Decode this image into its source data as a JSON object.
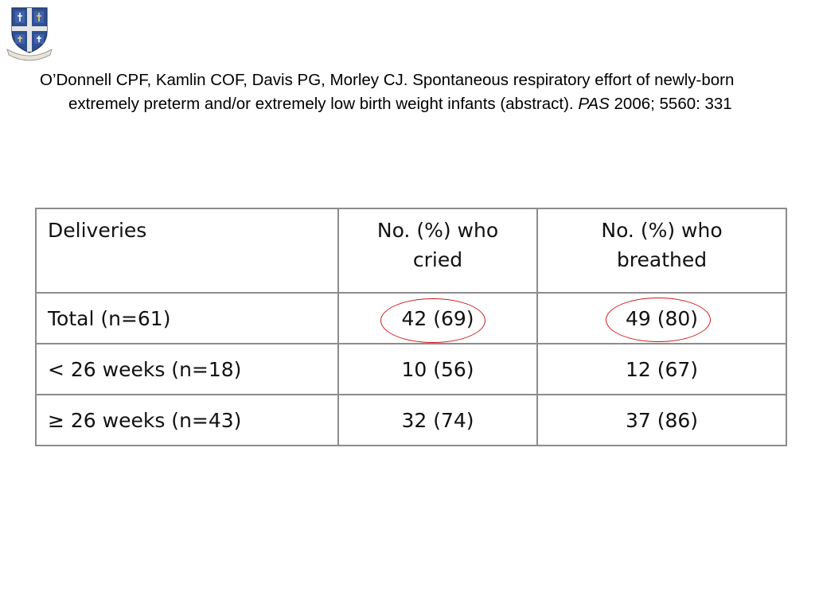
{
  "citation": {
    "authors_title": "O’Donnell CPF, Kamlin COF, Davis PG, Morley CJ. Spontaneous respiratory effort of newly-born extremely preterm and/or extremely low birth weight infants (abstract).",
    "journal": "PAS",
    "details": "2006; 5560: 331"
  },
  "table": {
    "headers": [
      "Deliveries",
      "No. (%) who cried",
      "No. (%) who breathed"
    ],
    "rows": [
      {
        "label": "Total (n=61)",
        "cried": "42 (69)",
        "breathed": "49 (80)"
      },
      {
        "label": "< 26 weeks (n=18)",
        "cried": "10 (56)",
        "breathed": "12 (67)"
      },
      {
        "label": "≥ 26 weeks (n=43)",
        "cried": "32 (74)",
        "breathed": "37 (86)"
      }
    ]
  },
  "highlight_color": "#d0181b",
  "logo_icon": "crest-icon"
}
